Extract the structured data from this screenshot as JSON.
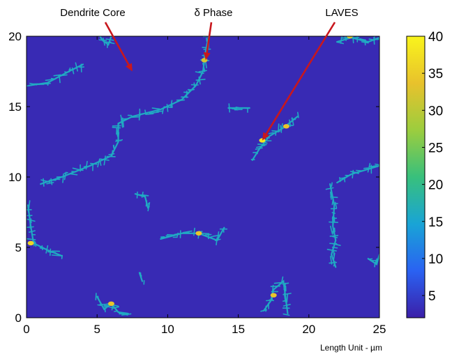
{
  "chart_data": {
    "type": "heatmap",
    "title": "",
    "xlabel": "",
    "ylabel": "",
    "x_unit_note": "Length Unit - µm",
    "xlim": [
      0,
      25
    ],
    "ylim": [
      0,
      20
    ],
    "x_ticks": [
      0,
      5,
      10,
      15,
      20,
      25
    ],
    "y_ticks": [
      0,
      5,
      10,
      15,
      20
    ],
    "background_value": 3,
    "colorbar": {
      "range": [
        2,
        40
      ],
      "ticks": [
        5,
        10,
        15,
        20,
        25,
        30,
        35,
        40
      ],
      "colors": [
        "#3b1fa8",
        "#2a62f2",
        "#19a4d6",
        "#38c07c",
        "#9ccd3e",
        "#e8c22c",
        "#f9f41c"
      ]
    },
    "annotations": [
      {
        "text": "Dendrite Core",
        "target": [
          7.5,
          17.5
        ]
      },
      {
        "text": "δ Phase",
        "target": [
          12.7,
          18.3
        ]
      },
      {
        "text": "LAVES",
        "target": [
          16.7,
          12.6
        ]
      }
    ],
    "features": [
      {
        "kind": "segregation",
        "value": 16,
        "path": [
          [
            5.2,
            20
          ],
          [
            5.4,
            19.7
          ],
          [
            5.8,
            19.4
          ],
          [
            6.0,
            20
          ]
        ]
      },
      {
        "kind": "segregation",
        "value": 16,
        "path": [
          [
            0.2,
            16.5
          ],
          [
            1.5,
            16.7
          ],
          [
            3.0,
            17.5
          ],
          [
            4.0,
            18.0
          ]
        ]
      },
      {
        "kind": "segregation",
        "value": 16,
        "path": [
          [
            1.0,
            9.5
          ],
          [
            2.5,
            10.0
          ],
          [
            4.5,
            10.8
          ],
          [
            6.0,
            11.5
          ],
          [
            6.5,
            12.5
          ],
          [
            6.5,
            13.8
          ],
          [
            7.5,
            14.3
          ],
          [
            9.5,
            14.8
          ],
          [
            11.0,
            15.5
          ],
          [
            12.0,
            16.5
          ],
          [
            12.5,
            17.5
          ],
          [
            12.7,
            19.0
          ],
          [
            12.9,
            20.0
          ]
        ]
      },
      {
        "kind": "segregation",
        "value": 16,
        "path": [
          [
            0.1,
            8.0
          ],
          [
            0.3,
            6.5
          ],
          [
            0.5,
            5.3
          ],
          [
            1.5,
            4.8
          ],
          [
            2.5,
            4.4
          ]
        ]
      },
      {
        "kind": "segregation",
        "value": 16,
        "path": [
          [
            9.5,
            5.6
          ],
          [
            11.0,
            6.0
          ],
          [
            12.2,
            6.0
          ],
          [
            13.5,
            5.5
          ],
          [
            14.0,
            6.4
          ]
        ]
      },
      {
        "kind": "segregation",
        "value": 16,
        "path": [
          [
            16.0,
            11.2
          ],
          [
            16.5,
            12.0
          ],
          [
            17.2,
            12.9
          ],
          [
            18.2,
            13.5
          ],
          [
            19.2,
            14.3
          ]
        ]
      },
      {
        "kind": "segregation",
        "value": 16,
        "path": [
          [
            5.0,
            1.5
          ],
          [
            5.5,
            0.6
          ],
          [
            6.0,
            1.0
          ],
          [
            6.5,
            0.4
          ],
          [
            7.2,
            0.3
          ]
        ]
      },
      {
        "kind": "segregation",
        "value": 16,
        "path": [
          [
            16.8,
            0.5
          ],
          [
            17.3,
            1.2
          ],
          [
            17.5,
            2.0
          ],
          [
            18.2,
            2.6
          ],
          [
            18.5,
            0.3
          ]
        ]
      },
      {
        "kind": "segregation",
        "value": 16,
        "path": [
          [
            21.5,
            9.5
          ],
          [
            21.8,
            8.0
          ],
          [
            21.7,
            6.5
          ],
          [
            21.9,
            5.5
          ],
          [
            21.6,
            4.5
          ],
          [
            21.9,
            3.6
          ]
        ]
      },
      {
        "kind": "segregation",
        "value": 16,
        "path": [
          [
            22.0,
            9.6
          ],
          [
            23.0,
            10.2
          ],
          [
            24.0,
            10.5
          ],
          [
            25.0,
            10.8
          ]
        ]
      },
      {
        "kind": "segregation",
        "value": 16,
        "path": [
          [
            24.2,
            4.2
          ],
          [
            24.8,
            3.8
          ],
          [
            25.0,
            4.5
          ]
        ]
      },
      {
        "kind": "segregation",
        "value": 16,
        "path": [
          [
            22.0,
            19.6
          ],
          [
            23.0,
            19.9
          ],
          [
            24.2,
            19.6
          ],
          [
            25.0,
            19.9
          ]
        ]
      },
      {
        "kind": "segregation",
        "value": 16,
        "path": [
          [
            7.7,
            8.8
          ],
          [
            8.4,
            8.6
          ],
          [
            8.6,
            7.8
          ]
        ]
      },
      {
        "kind": "segregation",
        "value": 16,
        "path": [
          [
            14.3,
            14.9
          ],
          [
            15.8,
            14.9
          ]
        ]
      },
      {
        "kind": "segregation",
        "value": 16,
        "path": [
          [
            8.0,
            3.2
          ],
          [
            8.2,
            2.6
          ]
        ]
      },
      {
        "kind": "laves",
        "value": 38,
        "x": 16.7,
        "y": 12.6
      },
      {
        "kind": "laves",
        "value": 34,
        "x": 18.4,
        "y": 13.6
      },
      {
        "kind": "laves",
        "value": 34,
        "x": 12.2,
        "y": 6.0
      },
      {
        "kind": "laves",
        "value": 36,
        "x": 0.3,
        "y": 5.3
      },
      {
        "kind": "laves",
        "value": 34,
        "x": 6.0,
        "y": 1.0
      },
      {
        "kind": "laves",
        "value": 34,
        "x": 17.5,
        "y": 1.6
      },
      {
        "kind": "laves",
        "value": 32,
        "x": 12.6,
        "y": 18.3
      },
      {
        "kind": "laves",
        "value": 32,
        "x": 22.9,
        "y": 20.0
      }
    ]
  }
}
